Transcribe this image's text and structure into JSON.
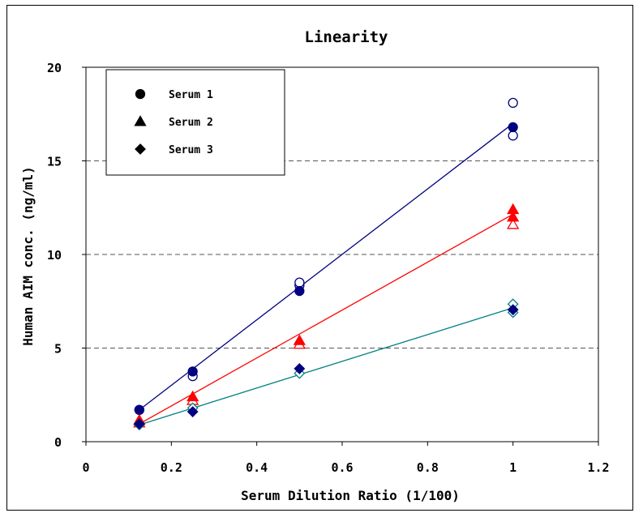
{
  "chart_data": {
    "type": "scatter",
    "title": "Linearity",
    "xlabel": "Serum Dilution Ratio (1/100)",
    "ylabel": "Human AIM conc. (ng/ml)",
    "xlim": [
      0,
      1.2
    ],
    "ylim": [
      0,
      20
    ],
    "x_ticks": [
      0,
      0.2,
      0.4,
      0.6,
      0.8,
      1,
      1.2
    ],
    "x_tick_labels": [
      "0",
      "0.2",
      "0.4",
      "0.6",
      "0.8",
      "1",
      "1.2"
    ],
    "y_ticks": [
      0,
      5,
      10,
      15,
      20
    ],
    "y_tick_labels": [
      "0",
      "5",
      "10",
      "15",
      "20"
    ],
    "grid": "horizontal dashed at 5, 10, 15",
    "legend_position": "top-left",
    "series": [
      {
        "name": "Serum 1",
        "marker": "circle",
        "color": "#000080",
        "filled_points": [
          [
            0.125,
            1.7
          ],
          [
            0.25,
            3.75
          ],
          [
            0.5,
            8.05
          ],
          [
            1,
            16.8
          ]
        ],
        "open_points": [
          [
            0.125,
            1.7
          ],
          [
            0.25,
            3.5
          ],
          [
            0.5,
            8.35
          ],
          [
            0.5,
            8.5
          ],
          [
            1,
            18.1
          ],
          [
            1,
            16.35
          ]
        ],
        "fit_line": [
          [
            0.125,
            1.7
          ],
          [
            1,
            17.0
          ]
        ]
      },
      {
        "name": "Serum 2",
        "marker": "triangle",
        "color": "#ff0000",
        "filled_points": [
          [
            0.125,
            1.15
          ],
          [
            0.25,
            2.4
          ],
          [
            0.5,
            5.4
          ],
          [
            1,
            12.4
          ],
          [
            1,
            12.0
          ]
        ],
        "open_points": [
          [
            0.125,
            1.0
          ],
          [
            0.25,
            2.2
          ],
          [
            0.5,
            5.2
          ],
          [
            1,
            11.6
          ]
        ],
        "fit_line": [
          [
            0.125,
            0.95
          ],
          [
            1,
            12.15
          ]
        ]
      },
      {
        "name": "Serum 3",
        "marker": "diamond",
        "color": "#008080",
        "fill_color": "#000080",
        "filled_points": [
          [
            0.125,
            0.95
          ],
          [
            0.25,
            1.6
          ],
          [
            0.5,
            3.9
          ],
          [
            1,
            7.05
          ]
        ],
        "open_points": [
          [
            0.125,
            0.9
          ],
          [
            0.25,
            1.8
          ],
          [
            0.5,
            3.65
          ],
          [
            1,
            7.35
          ],
          [
            1,
            6.9
          ]
        ],
        "fit_line": [
          [
            0.125,
            0.9
          ],
          [
            1,
            7.15
          ]
        ]
      }
    ]
  }
}
